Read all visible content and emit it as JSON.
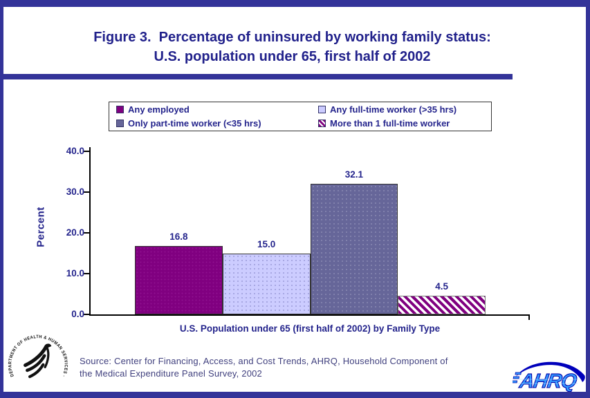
{
  "page": {
    "title_line1": "Figure 3.  Percentage of uninsured by working family status:",
    "title_line2": "U.S. population under 65, first half of 2002",
    "accent_color": "#333399"
  },
  "legend": {
    "items": [
      {
        "label": "Any employed",
        "color": "#800080",
        "pattern": "solid"
      },
      {
        "label": "Any full-time worker (>35 hrs)",
        "color": "#CCCCFF",
        "pattern": "solid"
      },
      {
        "label": "Only part-time worker (<35 hrs)",
        "color": "#666699",
        "pattern": "solid"
      },
      {
        "label": "More than 1 full-time worker",
        "color": "#800080",
        "pattern": "diagonal-hatch"
      }
    ]
  },
  "chart_data": {
    "type": "bar",
    "title": "Percentage of uninsured by working family status, U.S. population under 65, first half of 2002",
    "categories": [
      "Any employed",
      "Any full-time worker (>35 hrs)",
      "Only part-time worker (<35 hrs)",
      "More than 1 full-time worker"
    ],
    "values": [
      16.8,
      15.0,
      32.1,
      4.5
    ],
    "value_labels": [
      "16.8",
      "15.0",
      "32.1",
      "4.5"
    ],
    "colors": [
      "#800080",
      "#CCCCFF",
      "#666699",
      "#800080-hatch-on-white"
    ],
    "bar_styles": [
      "purple",
      "lavender",
      "slate",
      "hatch"
    ],
    "xlabel": "U.S. Population under 65 (first half of 2002) by Family Type",
    "ylabel": "Percent",
    "ylim": [
      0,
      40
    ],
    "yticks": [
      0,
      10,
      20,
      30,
      40
    ],
    "ytick_labels": [
      "0.0",
      "10.0",
      "20.0",
      "30.0",
      "40.0"
    ],
    "grid": false,
    "legend_position": "top"
  },
  "footer": {
    "source_line1": "Source: Center for Financing, Access, and Cost Trends, AHRQ, Household Component of",
    "source_line2": "the Medical Expenditure Panel Survey, 2002",
    "hhs_logo_text": "DEPARTMENT OF HEALTH & HUMAN SERVICES · USA",
    "ahrq_logo_text": "AHRQ"
  }
}
